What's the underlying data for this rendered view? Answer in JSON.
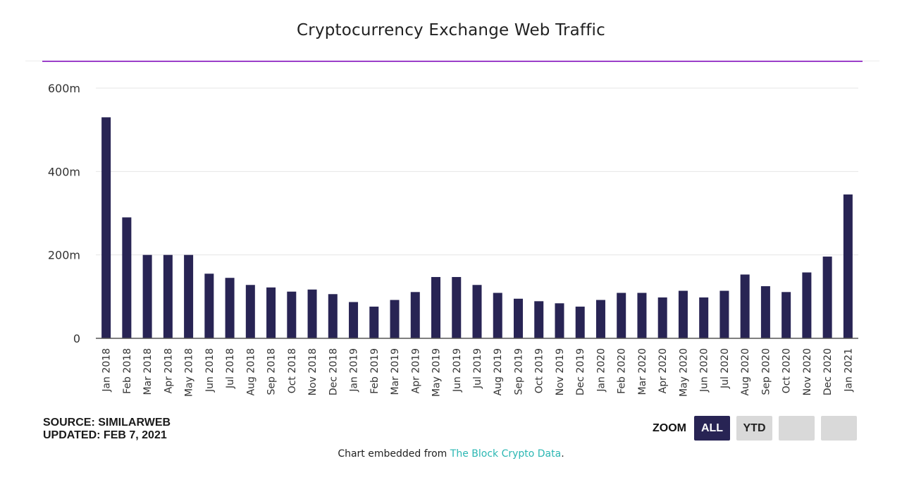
{
  "colors": {
    "bar": "#282454",
    "accent": "#9b3fc9",
    "link": "#2bb7b3",
    "button_active": "#282454",
    "button_inactive": "#d9d9d9"
  },
  "chart_data": {
    "type": "bar",
    "title": "Cryptocurrency Exchange Web Traffic",
    "xlabel": "",
    "ylabel": "",
    "ylim": [
      0,
      600
    ],
    "y_ticks": [
      {
        "value": 0,
        "label": "0"
      },
      {
        "value": 200,
        "label": "200m"
      },
      {
        "value": 400,
        "label": "400m"
      },
      {
        "value": 600,
        "label": "600m"
      }
    ],
    "grid": true,
    "legend": "none",
    "categories": [
      "Jan 2018",
      "Feb 2018",
      "Mar 2018",
      "Apr 2018",
      "May 2018",
      "Jun 2018",
      "Jul 2018",
      "Aug 2018",
      "Sep 2018",
      "Oct 2018",
      "Nov 2018",
      "Dec 2018",
      "Jan 2019",
      "Feb 2019",
      "Mar 2019",
      "Apr 2019",
      "May 2019",
      "Jun 2019",
      "Jul 2019",
      "Aug 2019",
      "Sep 2019",
      "Oct 2019",
      "Nov 2019",
      "Dec 2019",
      "Jan 2020",
      "Feb 2020",
      "Mar 2020",
      "Apr 2020",
      "May 2020",
      "Jun 2020",
      "Jul 2020",
      "Aug 2020",
      "Sep 2020",
      "Oct 2020",
      "Nov 2020",
      "Dec 2020",
      "Jan 2021"
    ],
    "values": [
      530,
      290,
      200,
      200,
      200,
      155,
      145,
      128,
      122,
      112,
      117,
      106,
      87,
      76,
      92,
      111,
      147,
      147,
      128,
      109,
      95,
      89,
      84,
      76,
      92,
      109,
      109,
      98,
      114,
      98,
      114,
      153,
      125,
      111,
      158,
      196,
      345
    ]
  },
  "footer": {
    "source": "SOURCE: SIMILARWEB",
    "updated": "UPDATED: FEB 7, 2021",
    "zoom_label": "ZOOM",
    "zoom_all": "ALL",
    "zoom_ytd": "YTD",
    "embed_prefix": "Chart embedded from ",
    "embed_link": "The Block Crypto Data",
    "embed_suffix": "."
  }
}
